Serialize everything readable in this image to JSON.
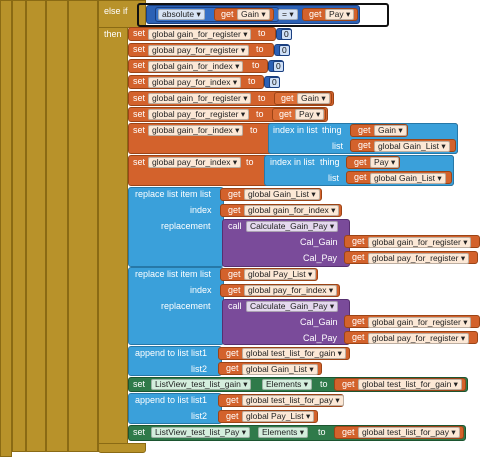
{
  "control": {
    "else_if": "else if",
    "then": "then"
  },
  "condition": {
    "math_func": "absolute",
    "left_get": "get",
    "left_var": "Gain",
    "op": "=",
    "right_get": "get",
    "right_var": "Pay"
  },
  "kw": {
    "set": "set",
    "to": "to",
    "get": "get",
    "index_in_list": "index in list",
    "thing": "thing",
    "list": "list",
    "replace_list_item": "replace list item",
    "index": "index",
    "replacement": "replacement",
    "call": "call",
    "append_to_list": "append to list",
    "list1": "list1",
    "list2": "list2"
  },
  "vars": {
    "gain_for_register": "global gain_for_register",
    "pay_for_register": "global pay_for_register",
    "gain_for_index": "global gain_for_index",
    "pay_for_index": "global pay_for_index",
    "gain_list": "global Gain_List",
    "pay_list": "global Pay_List",
    "test_list_for_gain": "global test_list_for_gain",
    "test_list_for_pay": "global test_list_for_pay",
    "gain": "Gain",
    "pay": "Pay"
  },
  "zero": "0",
  "proc": {
    "name": "Calculate_Gain_Pay",
    "arg1": "Cal_Gain",
    "arg2": "Cal_Pay"
  },
  "component": {
    "lv_gain": "ListView_test_list_gain",
    "lv_pay": "ListView_test_list_Pay",
    "prop": "Elements"
  },
  "colors": {
    "control": "#b8922a",
    "variable": "#d3622c",
    "math": "#2c61b5",
    "list": "#3aa0da",
    "procedure": "#7a4b9a",
    "component": "#2f7a4a"
  }
}
